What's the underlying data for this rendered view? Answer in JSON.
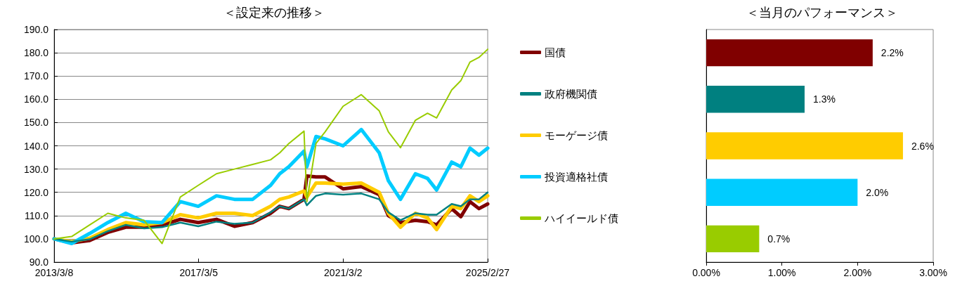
{
  "chart_data": [
    {
      "type": "line",
      "title": "＜設定来の推移＞",
      "x": [
        "2013-03-08",
        "2013-09",
        "2014-03",
        "2014-09",
        "2015-03",
        "2015-09",
        "2016-03",
        "2016-09",
        "2017-03",
        "2017-09",
        "2018-03",
        "2018-09",
        "2019-03",
        "2019-06",
        "2019-09",
        "2020-02",
        "2020-03",
        "2020-06",
        "2020-09",
        "2021-03",
        "2021-09",
        "2022-03",
        "2022-06",
        "2022-10",
        "2023-03",
        "2023-07",
        "2023-10",
        "2024-03",
        "2024-06",
        "2024-09",
        "2024-12",
        "2025-02-27"
      ],
      "series": [
        {
          "name": "国債",
          "color": "#800000",
          "values": [
            100,
            98.3,
            99.3,
            102.8,
            105,
            105,
            106,
            108.4,
            107,
            108.4,
            105.4,
            107,
            111,
            114,
            113,
            117,
            127,
            126.6,
            126.6,
            121.5,
            122.5,
            119,
            110,
            107,
            108,
            107.4,
            106,
            113,
            109.5,
            116,
            113,
            115
          ]
        },
        {
          "name": "政府機関債",
          "color": "#008080",
          "values": [
            100,
            98.8,
            99.8,
            103.3,
            106,
            104.5,
            105,
            107,
            105.4,
            107.4,
            106.5,
            107,
            111.4,
            114,
            113,
            117,
            114.4,
            118.5,
            119.5,
            119,
            119.5,
            117,
            111.4,
            108,
            111,
            110.4,
            110.4,
            115,
            114,
            117,
            117,
            120
          ]
        },
        {
          "name": "モーゲージ債",
          "color": "#ffcc00",
          "values": [
            100,
            98.8,
            100.3,
            104,
            107,
            106,
            107,
            110.4,
            109,
            111,
            111,
            110,
            114,
            117,
            118,
            120.6,
            118,
            124,
            124,
            123.5,
            124,
            120,
            111,
            105,
            111,
            109,
            104,
            114,
            113,
            118.5,
            116,
            118.5
          ]
        },
        {
          "name": "投資適格社債",
          "color": "#00ccff",
          "values": [
            100,
            98,
            102.3,
            107,
            111,
            107.4,
            107,
            116,
            114,
            118.5,
            117,
            117,
            123,
            128,
            131,
            137.7,
            131,
            144,
            143,
            140,
            147,
            137,
            125,
            117,
            128,
            126,
            121,
            133,
            131,
            139,
            136,
            139
          ]
        },
        {
          "name": "ハイイールド債",
          "color": "#99cc00",
          "values": [
            100,
            101,
            106,
            111,
            109,
            108,
            98,
            118,
            123,
            128,
            130,
            132,
            134,
            137,
            141,
            146.3,
            116,
            141,
            146,
            157,
            162,
            155,
            146,
            139.2,
            151,
            154,
            152,
            164,
            168,
            176,
            178,
            181.5
          ]
        }
      ],
      "ylim": [
        90,
        190
      ],
      "yticks": [
        {
          "value": 90,
          "label": "90.0"
        },
        {
          "value": 100,
          "label": "100.0"
        },
        {
          "value": 110,
          "label": "110.0"
        },
        {
          "value": 120,
          "label": "120.0"
        },
        {
          "value": 130,
          "label": "130.0"
        },
        {
          "value": 140,
          "label": "140.0"
        },
        {
          "value": 150,
          "label": "150.0"
        },
        {
          "value": 160,
          "label": "160.0"
        },
        {
          "value": 170,
          "label": "170.0"
        },
        {
          "value": 180,
          "label": "180.0"
        },
        {
          "value": 190,
          "label": "190.0"
        }
      ],
      "xlim": [
        "2013-03-08",
        "2025-02-27"
      ],
      "xticks": [
        {
          "value": "2013-03-08",
          "label": "2013/3/8"
        },
        {
          "value": "2017-03-05",
          "label": "2017/3/5"
        },
        {
          "value": "2021-03-02",
          "label": "2021/3/2"
        },
        {
          "value": "2025-02-27",
          "label": "2025/2/27"
        }
      ],
      "grid": "y",
      "legend": "right"
    },
    {
      "type": "bar",
      "title": "＜当月のパフォーマンス＞",
      "orientation": "horizontal",
      "categories": [
        null,
        null,
        null,
        null,
        null
      ],
      "values": [
        2.2,
        1.3,
        2.6,
        2.0,
        0.7
      ],
      "colors": [
        "#800000",
        "#008080",
        "#ffcc00",
        "#00ccff",
        "#99cc00"
      ],
      "value_labels": [
        "2.2%",
        "1.3%",
        "2.6%",
        "2.0%",
        "0.7%"
      ],
      "xlim": [
        0,
        3
      ],
      "xticks": [
        {
          "value": 0,
          "label": "0.00%"
        },
        {
          "value": 1,
          "label": "1.00%"
        },
        {
          "value": 2,
          "label": "2.00%"
        },
        {
          "value": 3,
          "label": "3.00%"
        }
      ],
      "grid": false
    }
  ]
}
